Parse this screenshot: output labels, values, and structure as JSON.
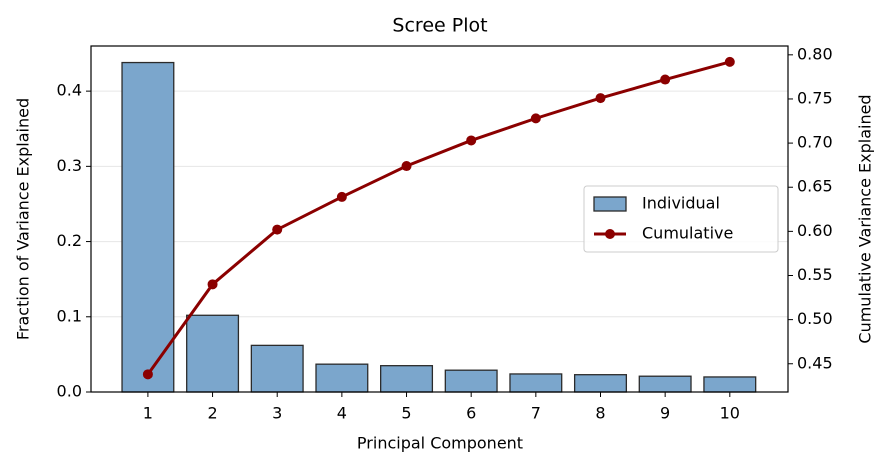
{
  "chart_data": {
    "type": "bar",
    "title": "Scree Plot",
    "xlabel": "Principal Component",
    "ylabel": "Fraction of Variance Explained",
    "y2label": "Cumulative Variance Explained",
    "x": [
      1,
      2,
      3,
      4,
      5,
      6,
      7,
      8,
      9,
      10
    ],
    "xlim": [
      0.12,
      10.9
    ],
    "xticks": [
      1,
      2,
      3,
      4,
      5,
      6,
      7,
      8,
      9,
      10
    ],
    "ylim": [
      0,
      0.46
    ],
    "yticks": [
      {
        "value": 0,
        "label": "0.0"
      },
      0.1,
      0.2,
      0.3,
      0.4
    ],
    "y2lim": [
      0.418,
      0.81
    ],
    "y2ticks": [
      0.45,
      {
        "value": 0.5,
        "label": "0.50"
      },
      0.55,
      {
        "value": 0.6,
        "label": "0.60"
      },
      0.65,
      {
        "value": 0.7,
        "label": "0.70"
      },
      0.75,
      {
        "value": 0.8,
        "label": "0.80"
      }
    ],
    "grid": true,
    "legend": "center right",
    "series": [
      {
        "name": "Individual",
        "type": "bar",
        "color": "#7ba6cc",
        "values": [
          0.438,
          0.102,
          0.062,
          0.037,
          0.035,
          0.029,
          0.024,
          0.023,
          0.021,
          0.02
        ]
      },
      {
        "name": "Cumulative",
        "type": "line",
        "axis": "y2",
        "color": "#8b0000",
        "values": [
          0.438,
          0.54,
          0.602,
          0.639,
          0.674,
          0.703,
          0.728,
          0.751,
          0.772,
          0.792
        ]
      }
    ]
  }
}
